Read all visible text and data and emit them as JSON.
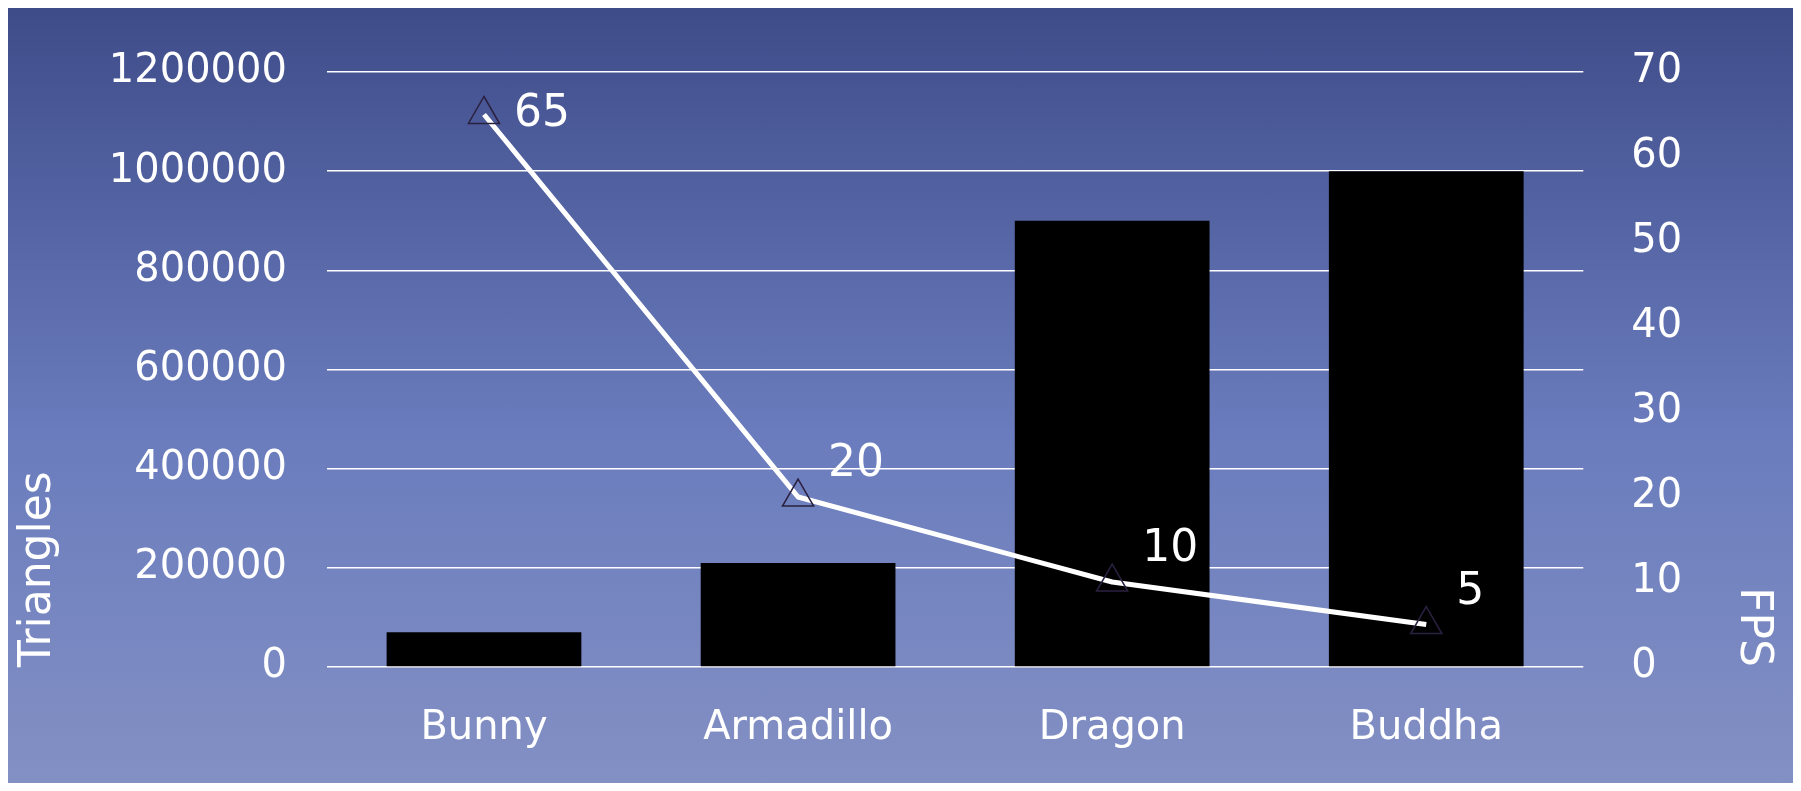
{
  "chart_data": {
    "type": "bar",
    "categories": [
      "Bunny",
      "Armadillo",
      "Dragon",
      "Buddha"
    ],
    "series": [
      {
        "color": "#000000",
        "values": [
          70000,
          210000,
          900000,
          1000000
        ]
      },
      {
        "type": "line",
        "axis": "y2",
        "color": "#ffffff",
        "values": [
          65,
          20,
          10,
          5
        ],
        "value_labels": [
          "65",
          "20",
          "10",
          "5"
        ],
        "marker": "triangle"
      }
    ],
    "ylabel": "Triangles",
    "y2label": "FPS",
    "ylim": [
      0,
      1200000
    ],
    "yticks": [
      0,
      200000,
      400000,
      600000,
      800000,
      1000000,
      1200000
    ],
    "y2lim": [
      0,
      70
    ],
    "y2ticks": [
      0,
      10,
      20,
      30,
      40,
      50,
      60,
      70
    ],
    "grid": "y",
    "legend": false
  }
}
